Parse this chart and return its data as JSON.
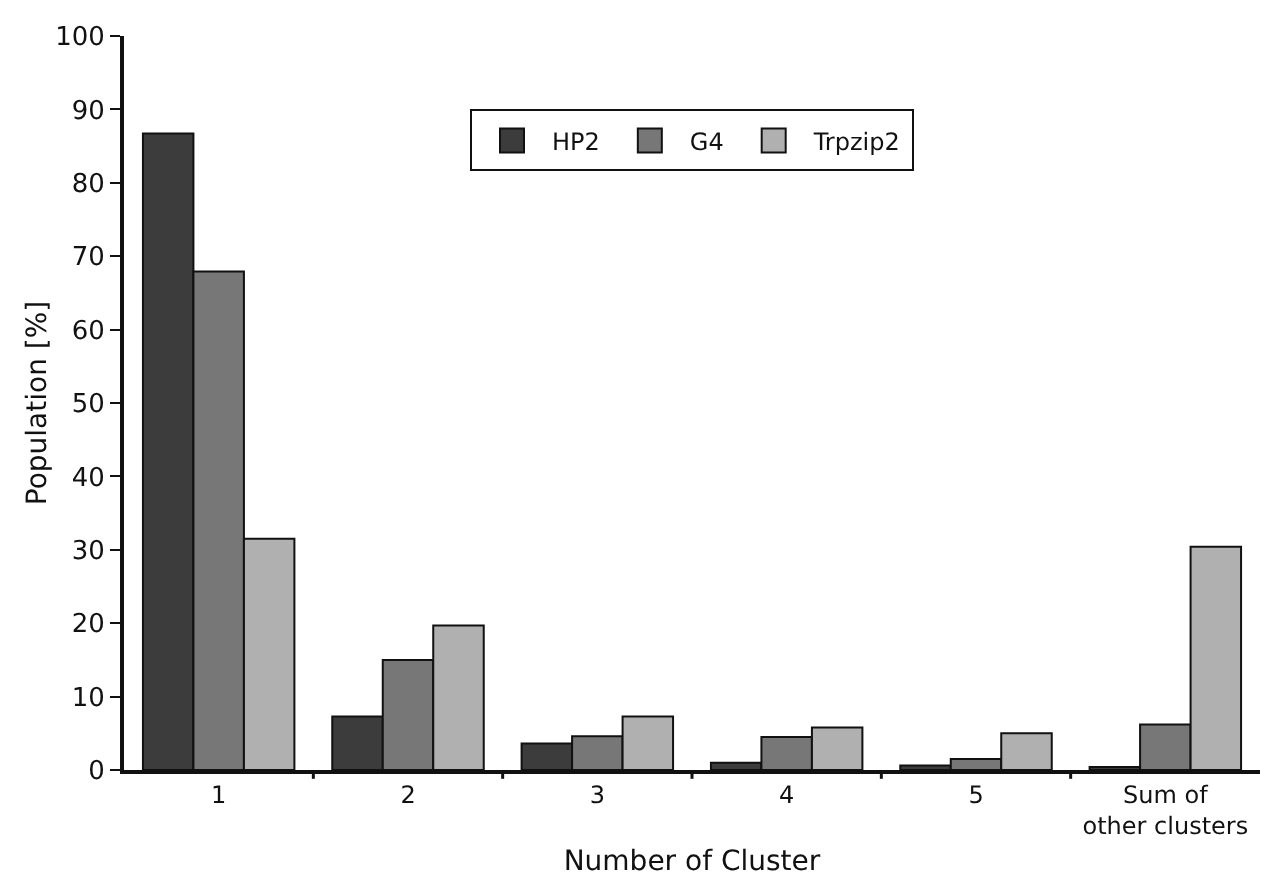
{
  "chart_data": {
    "type": "bar",
    "xlabel": "Number of Cluster",
    "ylabel": "Population [%]",
    "categories": [
      "1",
      "2",
      "3",
      "4",
      "5",
      "Sum of other clusters"
    ],
    "series": [
      {
        "name": "HP2",
        "color": "#3c3c3c",
        "values": [
          86.7,
          7.3,
          3.6,
          1.0,
          0.6,
          0.4
        ]
      },
      {
        "name": "G4",
        "color": "#777777",
        "values": [
          67.9,
          15.0,
          4.6,
          4.5,
          1.5,
          6.2
        ]
      },
      {
        "name": "Trpzip2",
        "color": "#b0b0b0",
        "values": [
          31.5,
          19.7,
          7.3,
          5.8,
          5.0,
          30.4
        ]
      }
    ],
    "ylim": [
      0,
      100
    ],
    "yticks": [
      0,
      10,
      20,
      30,
      40,
      50,
      60,
      70,
      80,
      90,
      100
    ],
    "grid": false,
    "legend": "top"
  }
}
